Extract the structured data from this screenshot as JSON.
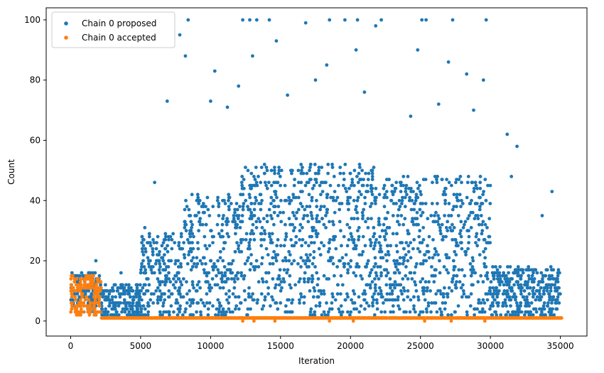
{
  "chart_data": {
    "type": "scatter",
    "title": "",
    "xlabel": "Iteration",
    "ylabel": "Count",
    "xlim": [
      -1750,
      36900
    ],
    "ylim": [
      -5,
      104
    ],
    "xticks": [
      0,
      5000,
      10000,
      15000,
      20000,
      25000,
      30000,
      35000
    ],
    "yticks": [
      0,
      20,
      40,
      60,
      80,
      100
    ],
    "legend": "top-left",
    "grid": false,
    "series": [
      {
        "name": "Chain 0 proposed",
        "color": "#1f77b4",
        "marker": "circle",
        "regions": [
          {
            "x": [
              0,
              2200
            ],
            "y": [
              3,
              16
            ]
          },
          {
            "x": [
              2200,
              5000
            ],
            "y": [
              1,
              12
            ]
          },
          {
            "x": [
              5000,
              8000
            ],
            "y": [
              1,
              30
            ]
          },
          {
            "x": [
              8000,
              12000
            ],
            "y": [
              1,
              42
            ]
          },
          {
            "x": [
              12000,
              22000
            ],
            "y": [
              1,
              52
            ]
          },
          {
            "x": [
              22000,
              30000
            ],
            "y": [
              1,
              48
            ]
          },
          {
            "x": [
              30000,
              35000
            ],
            "y": [
              1,
              18
            ]
          }
        ],
        "sample_points": [
          {
            "x": 8400,
            "y": 100
          },
          {
            "x": 12300,
            "y": 100
          },
          {
            "x": 12800,
            "y": 100
          },
          {
            "x": 13300,
            "y": 100
          },
          {
            "x": 14200,
            "y": 100
          },
          {
            "x": 18500,
            "y": 100
          },
          {
            "x": 19600,
            "y": 100
          },
          {
            "x": 20500,
            "y": 100
          },
          {
            "x": 22200,
            "y": 100
          },
          {
            "x": 25100,
            "y": 100
          },
          {
            "x": 25400,
            "y": 100
          },
          {
            "x": 27300,
            "y": 100
          },
          {
            "x": 29700,
            "y": 100
          },
          {
            "x": 7800,
            "y": 95
          },
          {
            "x": 16800,
            "y": 99
          },
          {
            "x": 21800,
            "y": 98
          },
          {
            "x": 8200,
            "y": 88
          },
          {
            "x": 10300,
            "y": 83
          },
          {
            "x": 13000,
            "y": 88
          },
          {
            "x": 14700,
            "y": 93
          },
          {
            "x": 18300,
            "y": 85
          },
          {
            "x": 20400,
            "y": 90
          },
          {
            "x": 24800,
            "y": 90
          },
          {
            "x": 27000,
            "y": 86
          },
          {
            "x": 28300,
            "y": 82
          },
          {
            "x": 29500,
            "y": 80
          },
          {
            "x": 31200,
            "y": 62
          },
          {
            "x": 31900,
            "y": 58
          },
          {
            "x": 6900,
            "y": 73
          },
          {
            "x": 10000,
            "y": 73
          },
          {
            "x": 11200,
            "y": 71
          },
          {
            "x": 12000,
            "y": 78
          },
          {
            "x": 15500,
            "y": 75
          },
          {
            "x": 17500,
            "y": 80
          },
          {
            "x": 21000,
            "y": 76
          },
          {
            "x": 24300,
            "y": 68
          },
          {
            "x": 26300,
            "y": 72
          },
          {
            "x": 28800,
            "y": 70
          },
          {
            "x": 31500,
            "y": 48
          },
          {
            "x": 34400,
            "y": 43
          },
          {
            "x": 33700,
            "y": 35
          },
          {
            "x": 6000,
            "y": 46
          },
          {
            "x": 5300,
            "y": 31
          },
          {
            "x": 3600,
            "y": 16
          },
          {
            "x": 1800,
            "y": 20
          }
        ]
      },
      {
        "name": "Chain 0 accepted",
        "color": "#ff7f0e",
        "marker": "circle",
        "regions": [
          {
            "x": [
              0,
              2200
            ],
            "y": [
              2,
              15
            ]
          },
          {
            "x": [
              2200,
              35100
            ],
            "y": [
              1,
              1
            ]
          }
        ],
        "sample_points": [
          {
            "x": 12300,
            "y": 0
          },
          {
            "x": 13100,
            "y": 0
          },
          {
            "x": 14600,
            "y": 0
          },
          {
            "x": 18500,
            "y": 0
          },
          {
            "x": 20200,
            "y": 0
          },
          {
            "x": 25300,
            "y": 0
          },
          {
            "x": 27200,
            "y": 0
          },
          {
            "x": 29600,
            "y": 0
          },
          {
            "x": 1500,
            "y": 15
          },
          {
            "x": 700,
            "y": 14
          }
        ]
      }
    ]
  }
}
